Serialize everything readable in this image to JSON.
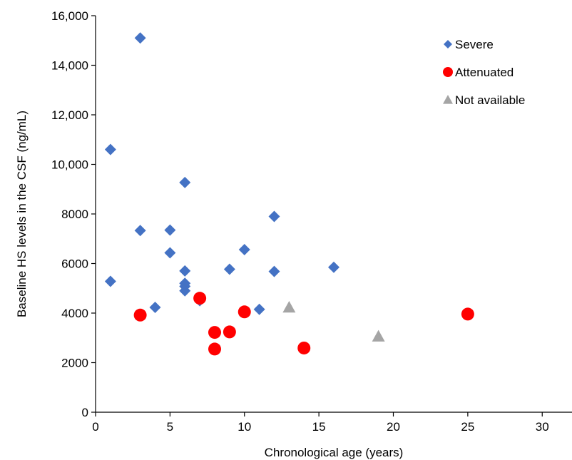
{
  "chart_data": {
    "type": "scatter",
    "title": "",
    "xlabel": "Chronological age (years)",
    "ylabel": "Baseline HS levels in the CSF (ng/mL)",
    "xlim": [
      0,
      32
    ],
    "ylim": [
      0,
      16000
    ],
    "x_ticks": [
      0,
      5,
      10,
      15,
      20,
      25,
      30
    ],
    "x_tick_labels": [
      "0",
      "5",
      "10",
      "15",
      "20",
      "25",
      "30"
    ],
    "y_ticks": [
      0,
      2000,
      4000,
      6000,
      8000,
      10000,
      12000,
      14000,
      16000
    ],
    "y_tick_labels": [
      "0",
      "2000",
      "4000",
      "6000",
      "8000",
      "10,000",
      "12,000",
      "14,000",
      "16,000"
    ],
    "grid": false,
    "legend_position": "top-right",
    "series": [
      {
        "name": "Severe",
        "marker": "diamond",
        "color": "#4472C4",
        "points": [
          [
            3,
            15100
          ],
          [
            1,
            10600
          ],
          [
            6,
            9270
          ],
          [
            12,
            7900
          ],
          [
            3,
            7330
          ],
          [
            5,
            7350
          ],
          [
            10,
            6560
          ],
          [
            5,
            6430
          ],
          [
            16,
            5850
          ],
          [
            9,
            5770
          ],
          [
            6,
            5700
          ],
          [
            12,
            5680
          ],
          [
            1,
            5280
          ],
          [
            6,
            5200
          ],
          [
            6,
            5080
          ],
          [
            6,
            4900
          ],
          [
            7,
            4500
          ],
          [
            4,
            4230
          ],
          [
            11,
            4150
          ]
        ]
      },
      {
        "name": "Attenuated",
        "marker": "circle",
        "color": "#FF0000",
        "points": [
          [
            7,
            4600
          ],
          [
            10,
            4050
          ],
          [
            25,
            3960
          ],
          [
            3,
            3920
          ],
          [
            8,
            3220
          ],
          [
            9,
            3240
          ],
          [
            14,
            2590
          ],
          [
            8,
            2550
          ]
        ]
      },
      {
        "name": "Not available",
        "marker": "triangle",
        "color": "#A5A5A5",
        "points": [
          [
            13,
            4230
          ],
          [
            19,
            3060
          ]
        ]
      }
    ]
  }
}
